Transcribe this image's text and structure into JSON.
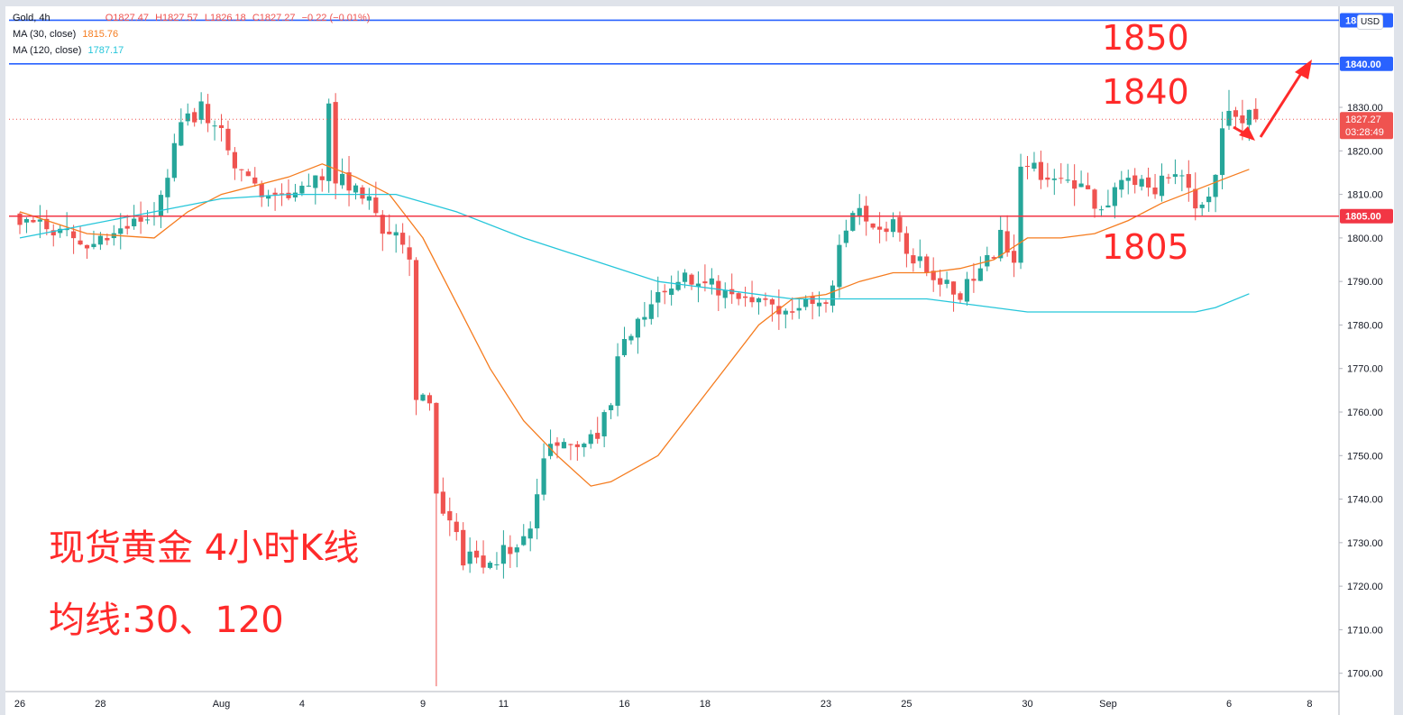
{
  "symbol": {
    "name": "Gold",
    "interval": "4h"
  },
  "ohlc": {
    "open": "O1827.47",
    "high": "H1827.57",
    "low": "L1826.18",
    "close": "C1827.27",
    "change": "−0.22 (−0.01%)"
  },
  "indicators": [
    {
      "label": "MA (30, close)",
      "value": "1815.76",
      "color": "#f57c1f"
    },
    {
      "label": "MA (120, close)",
      "value": "1787.17",
      "color": "#26c6da"
    }
  ],
  "currency": "USD",
  "price_labels": {
    "top": "1850.00",
    "h1840": "1840.00",
    "current": "1827.27",
    "countdown": "03:28:49",
    "h1805": "1805.00"
  },
  "annotations": {
    "level_1850": "1850",
    "level_1840": "1840",
    "level_1805": "1805",
    "title_line1": "现货黄金 4小时K线",
    "title_line2": "均线:30、120"
  },
  "colors": {
    "up": "#26a69a",
    "down": "#ef5350",
    "hline_blue": "#2962ff",
    "hline_red": "#f23645",
    "annotation": "#ff2a2a"
  },
  "chart_data": {
    "type": "candlestick",
    "ylim": [
      1696,
      1853
    ],
    "y_ticks": [
      1700,
      1710,
      1720,
      1730,
      1740,
      1750,
      1760,
      1770,
      1780,
      1790,
      1800,
      1810,
      1820,
      1830
    ],
    "x_ticks": [
      {
        "label": "26",
        "bar": 0
      },
      {
        "label": "28",
        "bar": 12
      },
      {
        "label": "Aug",
        "bar": 30
      },
      {
        "label": "4",
        "bar": 42
      },
      {
        "label": "9",
        "bar": 60
      },
      {
        "label": "11",
        "bar": 72
      },
      {
        "label": "16",
        "bar": 90
      },
      {
        "label": "18",
        "bar": 102
      },
      {
        "label": "23",
        "bar": 120
      },
      {
        "label": "25",
        "bar": 132
      },
      {
        "label": "30",
        "bar": 150
      },
      {
        "label": "Sep",
        "bar": 162
      },
      {
        "label": "6",
        "bar": 180
      },
      {
        "label": "8",
        "bar": 192
      }
    ],
    "horizontal_levels": [
      {
        "price": 1850,
        "color": "blue"
      },
      {
        "price": 1840,
        "color": "blue"
      },
      {
        "price": 1805,
        "color": "red"
      }
    ],
    "current_price": 1827.27,
    "series": [
      {
        "name": "MA (30, close)",
        "values": [
          [
            0,
            1806
          ],
          [
            10,
            1801
          ],
          [
            20,
            1800
          ],
          [
            25,
            1806
          ],
          [
            30,
            1810
          ],
          [
            40,
            1814
          ],
          [
            45,
            1817
          ],
          [
            50,
            1814
          ],
          [
            55,
            1810
          ],
          [
            60,
            1800
          ],
          [
            65,
            1785
          ],
          [
            70,
            1770
          ],
          [
            75,
            1758
          ],
          [
            80,
            1750
          ],
          [
            85,
            1743
          ],
          [
            88,
            1744
          ],
          [
            95,
            1750
          ],
          [
            100,
            1760
          ],
          [
            110,
            1780
          ],
          [
            115,
            1786
          ],
          [
            120,
            1787
          ],
          [
            125,
            1790
          ],
          [
            130,
            1792
          ],
          [
            135,
            1792
          ],
          [
            140,
            1793
          ],
          [
            145,
            1795
          ],
          [
            150,
            1800
          ],
          [
            155,
            1800
          ],
          [
            160,
            1801
          ],
          [
            165,
            1804
          ],
          [
            170,
            1808
          ],
          [
            175,
            1811
          ],
          [
            180,
            1814
          ],
          [
            183,
            1815.76
          ]
        ]
      },
      {
        "name": "MA (120, close)",
        "values": [
          [
            0,
            1800
          ],
          [
            10,
            1803
          ],
          [
            20,
            1806
          ],
          [
            30,
            1809
          ],
          [
            40,
            1810
          ],
          [
            50,
            1810
          ],
          [
            56,
            1810
          ],
          [
            65,
            1806
          ],
          [
            75,
            1800
          ],
          [
            85,
            1795
          ],
          [
            95,
            1790
          ],
          [
            105,
            1788
          ],
          [
            115,
            1786
          ],
          [
            125,
            1786
          ],
          [
            135,
            1786
          ],
          [
            145,
            1784
          ],
          [
            150,
            1783
          ],
          [
            160,
            1783
          ],
          [
            170,
            1783
          ],
          [
            175,
            1783
          ],
          [
            178,
            1784
          ],
          [
            183,
            1787.17
          ]
        ]
      }
    ]
  }
}
